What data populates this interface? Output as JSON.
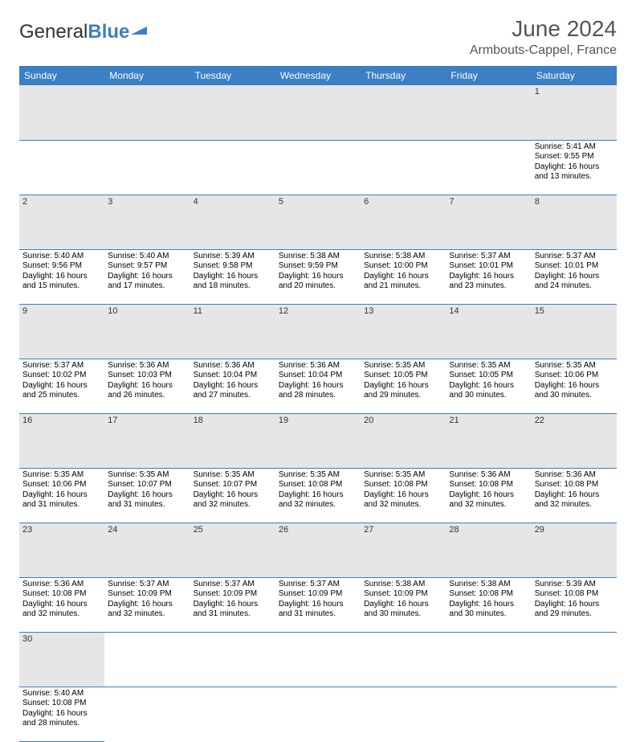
{
  "brand": {
    "general": "General",
    "blue": "Blue"
  },
  "title": "June 2024",
  "location": "Armbouts-Cappel, France",
  "colors": {
    "header_bg": "#3b7fc4",
    "header_text": "#ffffff",
    "daynum_bg": "#e6e6e6",
    "rule": "#3b7fc4",
    "title_color": "#555555"
  },
  "daysOfWeek": [
    "Sunday",
    "Monday",
    "Tuesday",
    "Wednesday",
    "Thursday",
    "Friday",
    "Saturday"
  ],
  "weeks": [
    [
      null,
      null,
      null,
      null,
      null,
      null,
      {
        "n": "1",
        "sr": "Sunrise: 5:41 AM",
        "ss": "Sunset: 9:55 PM",
        "d1": "Daylight: 16 hours",
        "d2": "and 13 minutes."
      }
    ],
    [
      {
        "n": "2",
        "sr": "Sunrise: 5:40 AM",
        "ss": "Sunset: 9:56 PM",
        "d1": "Daylight: 16 hours",
        "d2": "and 15 minutes."
      },
      {
        "n": "3",
        "sr": "Sunrise: 5:40 AM",
        "ss": "Sunset: 9:57 PM",
        "d1": "Daylight: 16 hours",
        "d2": "and 17 minutes."
      },
      {
        "n": "4",
        "sr": "Sunrise: 5:39 AM",
        "ss": "Sunset: 9:58 PM",
        "d1": "Daylight: 16 hours",
        "d2": "and 18 minutes."
      },
      {
        "n": "5",
        "sr": "Sunrise: 5:38 AM",
        "ss": "Sunset: 9:59 PM",
        "d1": "Daylight: 16 hours",
        "d2": "and 20 minutes."
      },
      {
        "n": "6",
        "sr": "Sunrise: 5:38 AM",
        "ss": "Sunset: 10:00 PM",
        "d1": "Daylight: 16 hours",
        "d2": "and 21 minutes."
      },
      {
        "n": "7",
        "sr": "Sunrise: 5:37 AM",
        "ss": "Sunset: 10:01 PM",
        "d1": "Daylight: 16 hours",
        "d2": "and 23 minutes."
      },
      {
        "n": "8",
        "sr": "Sunrise: 5:37 AM",
        "ss": "Sunset: 10:01 PM",
        "d1": "Daylight: 16 hours",
        "d2": "and 24 minutes."
      }
    ],
    [
      {
        "n": "9",
        "sr": "Sunrise: 5:37 AM",
        "ss": "Sunset: 10:02 PM",
        "d1": "Daylight: 16 hours",
        "d2": "and 25 minutes."
      },
      {
        "n": "10",
        "sr": "Sunrise: 5:36 AM",
        "ss": "Sunset: 10:03 PM",
        "d1": "Daylight: 16 hours",
        "d2": "and 26 minutes."
      },
      {
        "n": "11",
        "sr": "Sunrise: 5:36 AM",
        "ss": "Sunset: 10:04 PM",
        "d1": "Daylight: 16 hours",
        "d2": "and 27 minutes."
      },
      {
        "n": "12",
        "sr": "Sunrise: 5:36 AM",
        "ss": "Sunset: 10:04 PM",
        "d1": "Daylight: 16 hours",
        "d2": "and 28 minutes."
      },
      {
        "n": "13",
        "sr": "Sunrise: 5:35 AM",
        "ss": "Sunset: 10:05 PM",
        "d1": "Daylight: 16 hours",
        "d2": "and 29 minutes."
      },
      {
        "n": "14",
        "sr": "Sunrise: 5:35 AM",
        "ss": "Sunset: 10:05 PM",
        "d1": "Daylight: 16 hours",
        "d2": "and 30 minutes."
      },
      {
        "n": "15",
        "sr": "Sunrise: 5:35 AM",
        "ss": "Sunset: 10:06 PM",
        "d1": "Daylight: 16 hours",
        "d2": "and 30 minutes."
      }
    ],
    [
      {
        "n": "16",
        "sr": "Sunrise: 5:35 AM",
        "ss": "Sunset: 10:06 PM",
        "d1": "Daylight: 16 hours",
        "d2": "and 31 minutes."
      },
      {
        "n": "17",
        "sr": "Sunrise: 5:35 AM",
        "ss": "Sunset: 10:07 PM",
        "d1": "Daylight: 16 hours",
        "d2": "and 31 minutes."
      },
      {
        "n": "18",
        "sr": "Sunrise: 5:35 AM",
        "ss": "Sunset: 10:07 PM",
        "d1": "Daylight: 16 hours",
        "d2": "and 32 minutes."
      },
      {
        "n": "19",
        "sr": "Sunrise: 5:35 AM",
        "ss": "Sunset: 10:08 PM",
        "d1": "Daylight: 16 hours",
        "d2": "and 32 minutes."
      },
      {
        "n": "20",
        "sr": "Sunrise: 5:35 AM",
        "ss": "Sunset: 10:08 PM",
        "d1": "Daylight: 16 hours",
        "d2": "and 32 minutes."
      },
      {
        "n": "21",
        "sr": "Sunrise: 5:36 AM",
        "ss": "Sunset: 10:08 PM",
        "d1": "Daylight: 16 hours",
        "d2": "and 32 minutes."
      },
      {
        "n": "22",
        "sr": "Sunrise: 5:36 AM",
        "ss": "Sunset: 10:08 PM",
        "d1": "Daylight: 16 hours",
        "d2": "and 32 minutes."
      }
    ],
    [
      {
        "n": "23",
        "sr": "Sunrise: 5:36 AM",
        "ss": "Sunset: 10:08 PM",
        "d1": "Daylight: 16 hours",
        "d2": "and 32 minutes."
      },
      {
        "n": "24",
        "sr": "Sunrise: 5:37 AM",
        "ss": "Sunset: 10:09 PM",
        "d1": "Daylight: 16 hours",
        "d2": "and 32 minutes."
      },
      {
        "n": "25",
        "sr": "Sunrise: 5:37 AM",
        "ss": "Sunset: 10:09 PM",
        "d1": "Daylight: 16 hours",
        "d2": "and 31 minutes."
      },
      {
        "n": "26",
        "sr": "Sunrise: 5:37 AM",
        "ss": "Sunset: 10:09 PM",
        "d1": "Daylight: 16 hours",
        "d2": "and 31 minutes."
      },
      {
        "n": "27",
        "sr": "Sunrise: 5:38 AM",
        "ss": "Sunset: 10:09 PM",
        "d1": "Daylight: 16 hours",
        "d2": "and 30 minutes."
      },
      {
        "n": "28",
        "sr": "Sunrise: 5:38 AM",
        "ss": "Sunset: 10:08 PM",
        "d1": "Daylight: 16 hours",
        "d2": "and 30 minutes."
      },
      {
        "n": "29",
        "sr": "Sunrise: 5:39 AM",
        "ss": "Sunset: 10:08 PM",
        "d1": "Daylight: 16 hours",
        "d2": "and 29 minutes."
      }
    ],
    [
      {
        "n": "30",
        "sr": "Sunrise: 5:40 AM",
        "ss": "Sunset: 10:08 PM",
        "d1": "Daylight: 16 hours",
        "d2": "and 28 minutes."
      },
      null,
      null,
      null,
      null,
      null,
      null
    ]
  ]
}
